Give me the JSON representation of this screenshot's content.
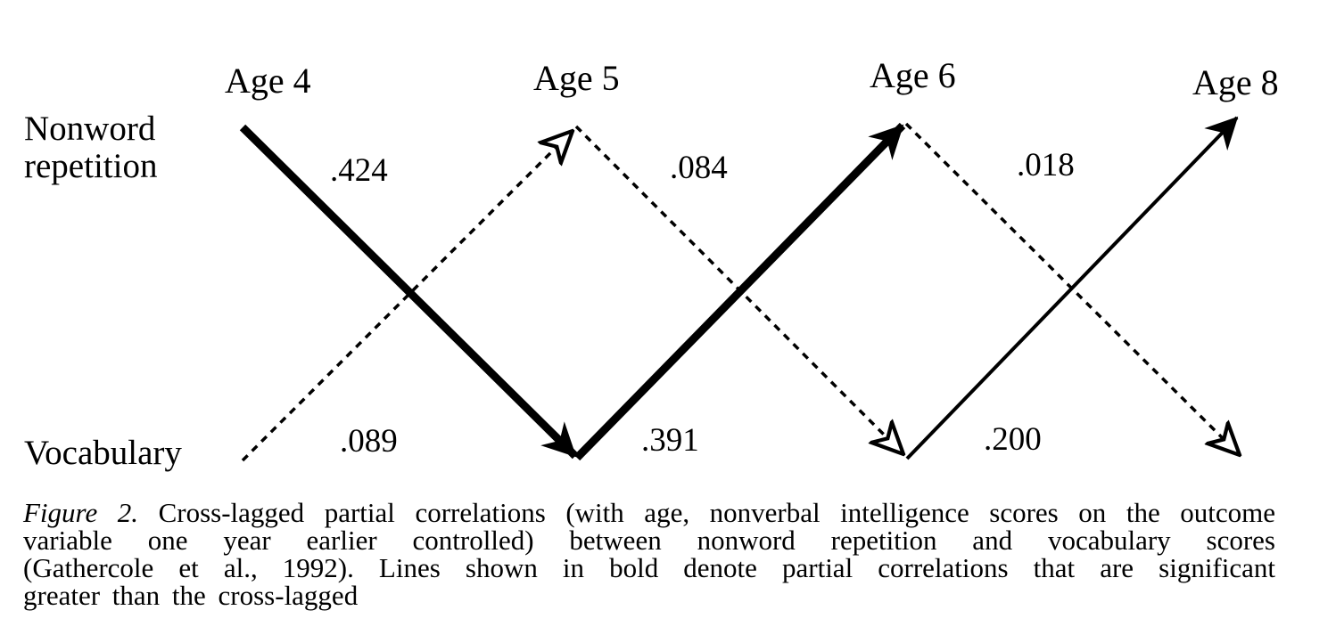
{
  "rows": {
    "top_line1": "Nonword",
    "top_line2": "repetition",
    "bottom": "Vocabulary"
  },
  "ages": [
    "Age 4",
    "Age 5",
    "Age 6",
    "Age 8"
  ],
  "paths": [
    {
      "label": ".424",
      "from": "Nonword repetition, Age 4",
      "to": "Vocabulary, Age 5",
      "bold": true
    },
    {
      "label": ".089",
      "from": "Vocabulary, Age 4",
      "to": "Nonword repetition, Age 5",
      "bold": false
    },
    {
      "label": ".084",
      "from": "Nonword repetition, Age 5",
      "to": "Vocabulary, Age 6",
      "bold": false
    },
    {
      "label": ".391",
      "from": "Vocabulary, Age 5",
      "to": "Nonword repetition, Age 6",
      "bold": true
    },
    {
      "label": ".018",
      "from": "Nonword repetition, Age 6",
      "to": "Vocabulary, Age 8",
      "bold": false
    },
    {
      "label": ".200",
      "from": "Vocabulary, Age 6",
      "to": "Nonword repetition, Age 8",
      "bold": false
    }
  ],
  "caption": {
    "figure_label": "Figure 2.",
    "line1": "Cross-lagged partial correlations (with age, nonverbal intelligence scores on the outcome",
    "line2": "variable one year earlier controlled) between nonword repetition and vocabulary scores",
    "line3": "(Gathercole et al., 1992). Lines shown in bold denote partial correlations that are significant",
    "line4": "greater than the cross-lagged"
  }
}
